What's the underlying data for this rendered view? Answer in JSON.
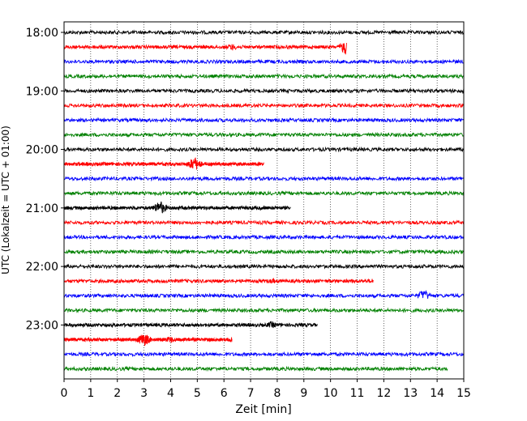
{
  "chart_data": {
    "type": "line",
    "title": "",
    "xlabel": "Zeit  [min]",
    "ylabel": "UTC (Lokalzeit = UTC + 01:00)",
    "xlim": [
      0,
      15
    ],
    "xticks": [
      0,
      1,
      2,
      3,
      4,
      5,
      6,
      7,
      8,
      9,
      10,
      11,
      12,
      13,
      14,
      15
    ],
    "ytick_labels": [
      "18:00",
      "19:00",
      "20:00",
      "21:00",
      "22:00",
      "23:00"
    ],
    "row_interval_min": 15,
    "start_time": "18:00",
    "row_colors": [
      "#000000",
      "#ff0000",
      "#0000ff",
      "#008000"
    ],
    "grid": "vertical-dotted",
    "series": [
      {
        "values": [
          {
            "t": 0.0,
            "amp": 0.5
          },
          {
            "t": 15.0,
            "amp": 0.6
          }
        ]
      },
      {
        "values": [
          {
            "t": 6.3,
            "amp": 1.5
          },
          {
            "t": 10.6,
            "amp": 3.5
          }
        ]
      },
      {
        "values": [
          {
            "t": 0.0,
            "amp": 0.5
          },
          {
            "t": 15.0,
            "amp": 0.5
          }
        ]
      },
      {
        "values": [
          {
            "t": 0.0,
            "amp": 0.8
          },
          {
            "t": 7.5,
            "amp": 0.8
          },
          {
            "t": 15.0,
            "amp": 0.5
          }
        ]
      },
      {
        "values": [
          {
            "t": 0.0,
            "amp": 0.6
          },
          {
            "t": 15.0,
            "amp": 1.2
          }
        ]
      },
      {
        "values": [
          {
            "t": 0.0,
            "amp": 0.5
          },
          {
            "t": 15.0,
            "amp": 0.5
          }
        ]
      },
      {
        "values": [
          {
            "t": 0.0,
            "amp": 0.5
          },
          {
            "t": 15.0,
            "amp": 0.5
          }
        ]
      },
      {
        "values": [
          {
            "t": 0.0,
            "amp": 0.6
          },
          {
            "t": 15.0,
            "amp": 0.6
          }
        ]
      },
      {
        "values": [
          {
            "t": 0.0,
            "amp": 0.8
          },
          {
            "t": 8.5,
            "amp": 0.8
          },
          {
            "t": 15.0,
            "amp": 0.5
          }
        ]
      },
      {
        "values": [
          {
            "t": 4.9,
            "amp": 3.0
          },
          {
            "t": 7.5,
            "amp": 0.8
          }
        ]
      },
      {
        "values": [
          {
            "t": 0.0,
            "amp": 0.8
          },
          {
            "t": 8.5,
            "amp": 0.8
          },
          {
            "t": 15.0,
            "amp": 0.5
          }
        ]
      },
      {
        "values": [
          {
            "t": 0.0,
            "amp": 0.8
          },
          {
            "t": 7.5,
            "amp": 0.8
          },
          {
            "t": 15.0,
            "amp": 0.5
          }
        ]
      },
      {
        "values": [
          {
            "t": 3.6,
            "amp": 3.0
          },
          {
            "t": 8.5,
            "amp": 0.8
          }
        ]
      },
      {
        "values": [
          {
            "t": 0.0,
            "amp": 0.8
          },
          {
            "t": 7.5,
            "amp": 0.8
          },
          {
            "t": 15.0,
            "amp": 0.5
          }
        ]
      },
      {
        "values": [
          {
            "t": 0.0,
            "amp": 0.8
          },
          {
            "t": 8.5,
            "amp": 0.8
          },
          {
            "t": 15.0,
            "amp": 0.5
          }
        ]
      },
      {
        "values": [
          {
            "t": 0.0,
            "amp": 0.8
          },
          {
            "t": 7.5,
            "amp": 0.8
          },
          {
            "t": 15.0,
            "amp": 0.5
          }
        ]
      },
      {
        "values": [
          {
            "t": 0.0,
            "amp": 0.8
          },
          {
            "t": 8.5,
            "amp": 0.8
          },
          {
            "t": 15.0,
            "amp": 0.5
          }
        ]
      },
      {
        "values": [
          {
            "t": 7.8,
            "amp": 1.2
          },
          {
            "t": 11.6,
            "amp": 1.2
          }
        ]
      },
      {
        "values": [
          {
            "t": 13.5,
            "amp": 2.5
          },
          {
            "t": 15.0,
            "amp": 0.5
          }
        ]
      },
      {
        "values": [
          {
            "t": 0.0,
            "amp": 0.6
          },
          {
            "t": 15.0,
            "amp": 0.5
          }
        ]
      },
      {
        "values": [
          {
            "t": 7.8,
            "amp": 1.5
          },
          {
            "t": 9.5,
            "amp": 0.8
          }
        ]
      },
      {
        "values": [
          {
            "t": 3.0,
            "amp": 2.8
          },
          {
            "t": 4.0,
            "amp": 1.5
          },
          {
            "t": 6.3,
            "amp": 1.2
          }
        ]
      },
      {
        "values": [
          {
            "t": 0.0,
            "amp": 0.6
          },
          {
            "t": 15.0,
            "amp": 0.5
          }
        ]
      },
      {
        "values": [
          {
            "t": 0.0,
            "amp": 0.8
          },
          {
            "t": 14.4,
            "amp": 0.8
          }
        ]
      }
    ]
  }
}
